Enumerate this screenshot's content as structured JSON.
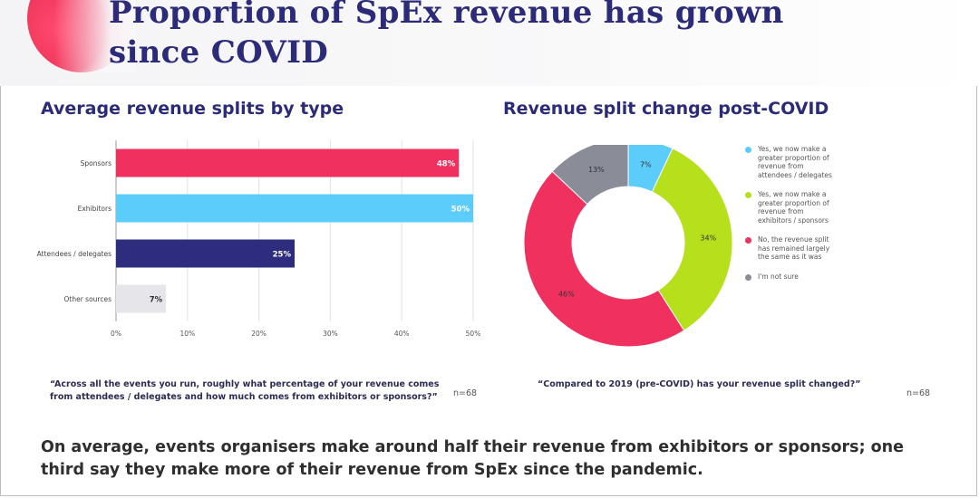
{
  "slide": {
    "title_line1": "Proportion of SpEx revenue has grown",
    "title_line2": "since COVID",
    "left_subhead": "Average revenue splits by type",
    "right_subhead": "Revenue split change post-COVID",
    "left_note": "“Across all the events you run, roughly what percentage of your revenue comes from attendees / delegates and how much comes from exhibitors or sponsors?”",
    "left_n": "n=68",
    "right_note": "“Compared to 2019 (pre-COVID) has your revenue split changed?”",
    "right_n": "n=68",
    "footer": "On average, events organisers make around half their revenue from exhibitors or sponsors; one third say they make more of their revenue from SpEx since the pandemic.",
    "accent_color": "#f0305f"
  },
  "chart_data": [
    {
      "type": "bar",
      "orientation": "horizontal",
      "title": "Average revenue splits by type",
      "categories": [
        "Sponsors",
        "Exhibitors",
        "Attendees / delegates",
        "Other sources"
      ],
      "values": [
        48,
        50,
        25,
        7
      ],
      "labels": [
        "48%",
        "50%",
        "25%",
        "7%"
      ],
      "colors": [
        "#f0305f",
        "#5ccdfb",
        "#2e2c7e",
        "#e6e6ea"
      ],
      "label_colors": [
        "#ffffff",
        "#ffffff",
        "#ffffff",
        "#333333"
      ],
      "xlim": [
        0,
        50
      ],
      "xticks": [
        0,
        10,
        20,
        30,
        40,
        50
      ],
      "xtick_labels": [
        "0%",
        "10%",
        "20%",
        "30%",
        "40%",
        "50%"
      ]
    },
    {
      "type": "pie",
      "donut": true,
      "title": "Revenue split change post-COVID",
      "slices": [
        {
          "label": "Yes, we now make a greater proportion of revenue from attendees / delegates",
          "value": 7,
          "display": "7%",
          "color": "#5ccdfb"
        },
        {
          "label": "Yes, we now make a greater proportion of revenue from exhibitors / sponsors",
          "value": 34,
          "display": "34%",
          "color": "#b6e01c"
        },
        {
          "label": "No, the revenue split has remained largely the same as it was",
          "value": 46,
          "display": "46%",
          "color": "#f0305f"
        },
        {
          "label": "I'm not sure",
          "value": 13,
          "display": "13%",
          "color": "#8a8c98"
        }
      ]
    }
  ]
}
